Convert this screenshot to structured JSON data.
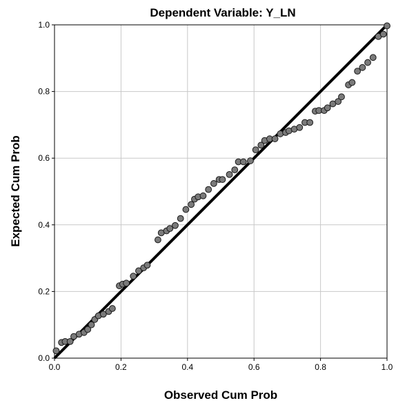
{
  "chart_data": {
    "type": "scatter",
    "title": "Dependent Variable: Y_LN",
    "xlabel": "Observed Cum Prob",
    "ylabel": "Expected Cum Prob",
    "xlim": [
      0,
      1
    ],
    "ylim": [
      0,
      1
    ],
    "x_ticks": [
      "0.0",
      "0.2",
      "0.4",
      "0.6",
      "0.8",
      "1.0"
    ],
    "y_ticks": [
      "0.0",
      "0.2",
      "0.4",
      "0.6",
      "0.8",
      "1.0"
    ],
    "grid": true,
    "legend": "none",
    "reference_line": {
      "from": [
        0,
        0
      ],
      "to": [
        1,
        1
      ],
      "color": "#000000"
    },
    "marker_color": "#7a7a7a",
    "marker_edge_color": "#1a1a1a",
    "points": [
      [
        0.005,
        0.022
      ],
      [
        0.021,
        0.047
      ],
      [
        0.032,
        0.05
      ],
      [
        0.047,
        0.05
      ],
      [
        0.058,
        0.065
      ],
      [
        0.074,
        0.072
      ],
      [
        0.089,
        0.077
      ],
      [
        0.1,
        0.086
      ],
      [
        0.111,
        0.1
      ],
      [
        0.121,
        0.116
      ],
      [
        0.132,
        0.127
      ],
      [
        0.147,
        0.132
      ],
      [
        0.163,
        0.14
      ],
      [
        0.174,
        0.149
      ],
      [
        0.195,
        0.217
      ],
      [
        0.205,
        0.222
      ],
      [
        0.216,
        0.225
      ],
      [
        0.237,
        0.246
      ],
      [
        0.253,
        0.262
      ],
      [
        0.268,
        0.271
      ],
      [
        0.279,
        0.279
      ],
      [
        0.311,
        0.355
      ],
      [
        0.321,
        0.376
      ],
      [
        0.337,
        0.382
      ],
      [
        0.347,
        0.389
      ],
      [
        0.363,
        0.398
      ],
      [
        0.379,
        0.419
      ],
      [
        0.395,
        0.446
      ],
      [
        0.411,
        0.461
      ],
      [
        0.421,
        0.477
      ],
      [
        0.432,
        0.484
      ],
      [
        0.447,
        0.487
      ],
      [
        0.463,
        0.506
      ],
      [
        0.479,
        0.524
      ],
      [
        0.495,
        0.536
      ],
      [
        0.505,
        0.536
      ],
      [
        0.526,
        0.551
      ],
      [
        0.542,
        0.565
      ],
      [
        0.553,
        0.589
      ],
      [
        0.568,
        0.589
      ],
      [
        0.589,
        0.592
      ],
      [
        0.605,
        0.625
      ],
      [
        0.621,
        0.639
      ],
      [
        0.632,
        0.653
      ],
      [
        0.647,
        0.658
      ],
      [
        0.663,
        0.658
      ],
      [
        0.679,
        0.673
      ],
      [
        0.695,
        0.677
      ],
      [
        0.705,
        0.682
      ],
      [
        0.721,
        0.687
      ],
      [
        0.737,
        0.692
      ],
      [
        0.753,
        0.707
      ],
      [
        0.768,
        0.707
      ],
      [
        0.784,
        0.741
      ],
      [
        0.795,
        0.743
      ],
      [
        0.811,
        0.743
      ],
      [
        0.821,
        0.751
      ],
      [
        0.837,
        0.763
      ],
      [
        0.853,
        0.77
      ],
      [
        0.863,
        0.784
      ],
      [
        0.884,
        0.82
      ],
      [
        0.895,
        0.827
      ],
      [
        0.911,
        0.861
      ],
      [
        0.926,
        0.872
      ],
      [
        0.942,
        0.887
      ],
      [
        0.958,
        0.902
      ],
      [
        0.974,
        0.965
      ],
      [
        0.989,
        0.972
      ],
      [
        1.0,
        0.997
      ]
    ]
  }
}
